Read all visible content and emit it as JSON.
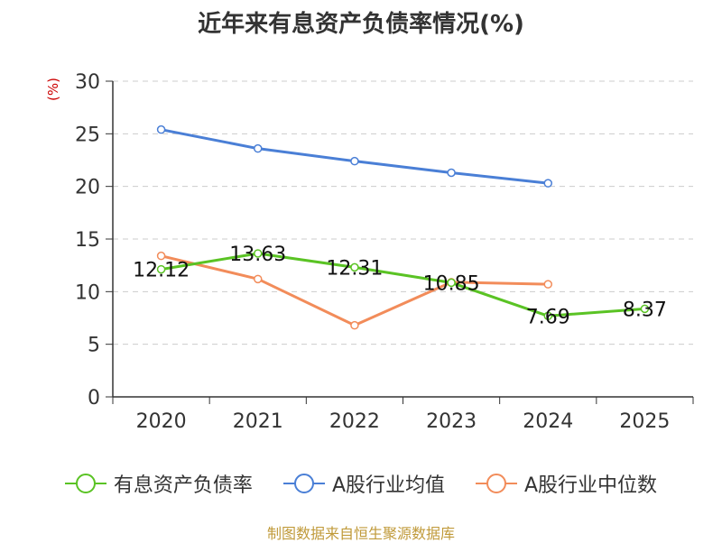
{
  "chart_data": {
    "type": "line",
    "title": "近年来有息资产负债率情况(%)",
    "ylabel": "(%)",
    "xlabel": "",
    "categories": [
      "2020",
      "2021",
      "2022",
      "2023",
      "2024",
      "2025"
    ],
    "ylim": [
      0,
      30
    ],
    "yticks": [
      0,
      5,
      10,
      15,
      20,
      25,
      30
    ],
    "grid": true,
    "legend_position": "bottom",
    "series": [
      {
        "name": "有息资产负债率",
        "color": "#5ac324",
        "values": [
          12.12,
          13.63,
          12.31,
          10.85,
          7.69,
          8.37
        ],
        "labels": [
          "12.12",
          "13.63",
          "12.31",
          "10.85",
          "7.69",
          "8.37"
        ]
      },
      {
        "name": "A股行业均值",
        "color": "#4a7fd6",
        "values": [
          25.4,
          23.6,
          22.4,
          21.3,
          20.3,
          null
        ]
      },
      {
        "name": "A股行业中位数",
        "color": "#f28c5a",
        "values": [
          13.4,
          11.2,
          6.8,
          10.9,
          10.7,
          null
        ]
      }
    ],
    "source": "制图数据来自恒生聚源数据库"
  }
}
